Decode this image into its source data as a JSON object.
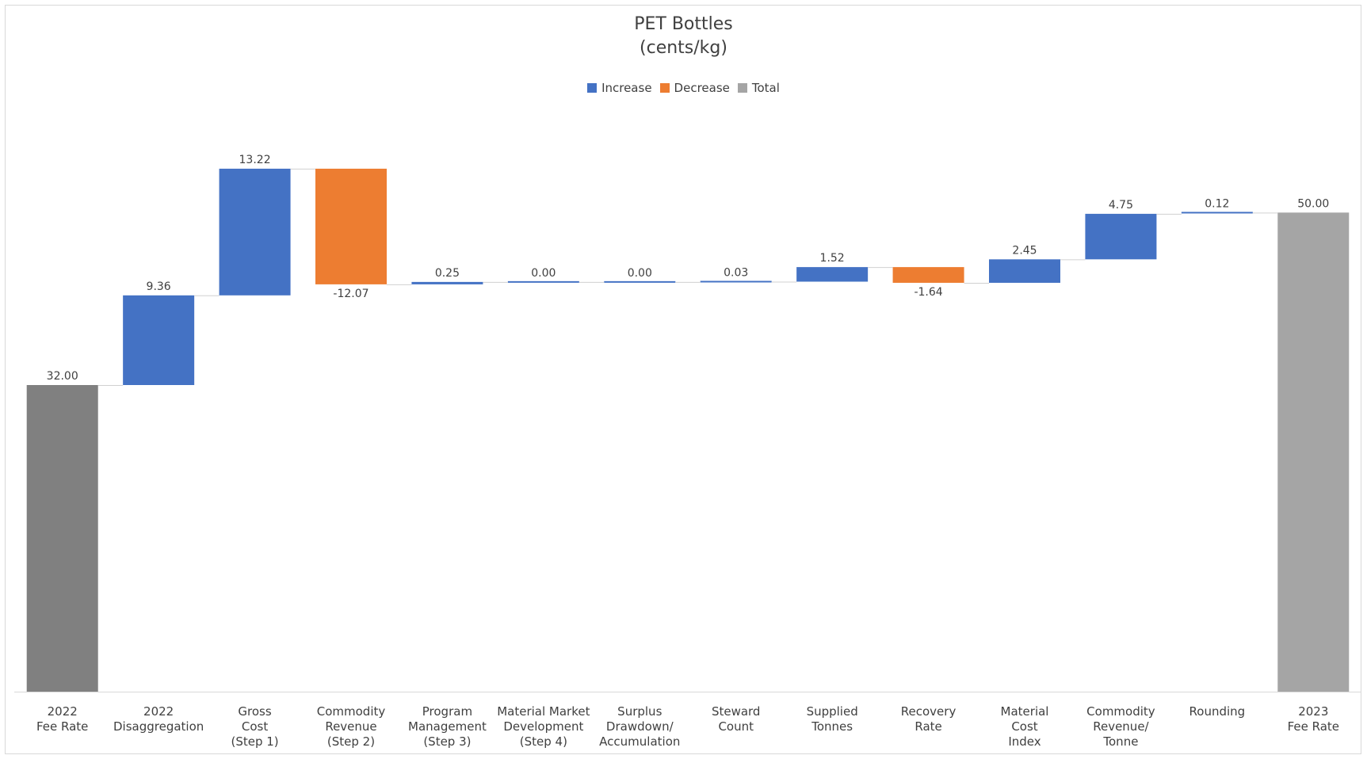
{
  "chart_data": {
    "type": "waterfall",
    "title": "PET Bottles",
    "subtitle": "(cents/kg)",
    "unit": "cents/kg",
    "legend": [
      {
        "label": "Increase",
        "color": "#4472C4"
      },
      {
        "label": "Decrease",
        "color": "#ED7D31"
      },
      {
        "label": "Total",
        "color": "#A5A5A5"
      }
    ],
    "legend_placement": "top",
    "grid": false,
    "ylim": [
      0,
      55
    ],
    "steps": [
      {
        "category": [
          "2022",
          "Fee Rate"
        ],
        "value": 32.0,
        "label": "32.00",
        "kind": "total",
        "color": "#808080"
      },
      {
        "category": [
          "2022",
          "Disaggregation"
        ],
        "value": 9.36,
        "label": "9.36",
        "kind": "increase"
      },
      {
        "category": [
          "Gross",
          "Cost",
          "(Step 1)"
        ],
        "value": 13.22,
        "label": "13.22",
        "kind": "increase"
      },
      {
        "category": [
          "Commodity",
          "Revenue",
          "(Step 2)"
        ],
        "value": -12.07,
        "label": "-12.07",
        "kind": "decrease"
      },
      {
        "category": [
          "Program",
          "Management",
          "(Step 3)"
        ],
        "value": 0.25,
        "label": "0.25",
        "kind": "increase"
      },
      {
        "category": [
          "Material Market",
          "Development",
          "(Step 4)"
        ],
        "value": 0.0,
        "label": "0.00",
        "kind": "increase"
      },
      {
        "category": [
          "Surplus",
          "Drawdown/",
          "Accumulation"
        ],
        "value": 0.0,
        "label": "0.00",
        "kind": "increase"
      },
      {
        "category": [
          "Steward",
          "Count"
        ],
        "value": 0.03,
        "label": "0.03",
        "kind": "increase"
      },
      {
        "category": [
          "Supplied",
          "Tonnes"
        ],
        "value": 1.52,
        "label": "1.52",
        "kind": "increase"
      },
      {
        "category": [
          "Recovery",
          "Rate"
        ],
        "value": -1.64,
        "label": "-1.64",
        "kind": "decrease"
      },
      {
        "category": [
          "Material",
          "Cost",
          "Index"
        ],
        "value": 2.45,
        "label": "2.45",
        "kind": "increase"
      },
      {
        "category": [
          "Commodity",
          "Revenue/",
          "Tonne"
        ],
        "value": 4.75,
        "label": "4.75",
        "kind": "increase"
      },
      {
        "category": [
          "Rounding"
        ],
        "value": 0.12,
        "label": "0.12",
        "kind": "increase"
      },
      {
        "category": [
          "2023",
          "Fee Rate"
        ],
        "value": 50.0,
        "label": "50.00",
        "kind": "total",
        "color": "#A5A5A5"
      }
    ]
  }
}
